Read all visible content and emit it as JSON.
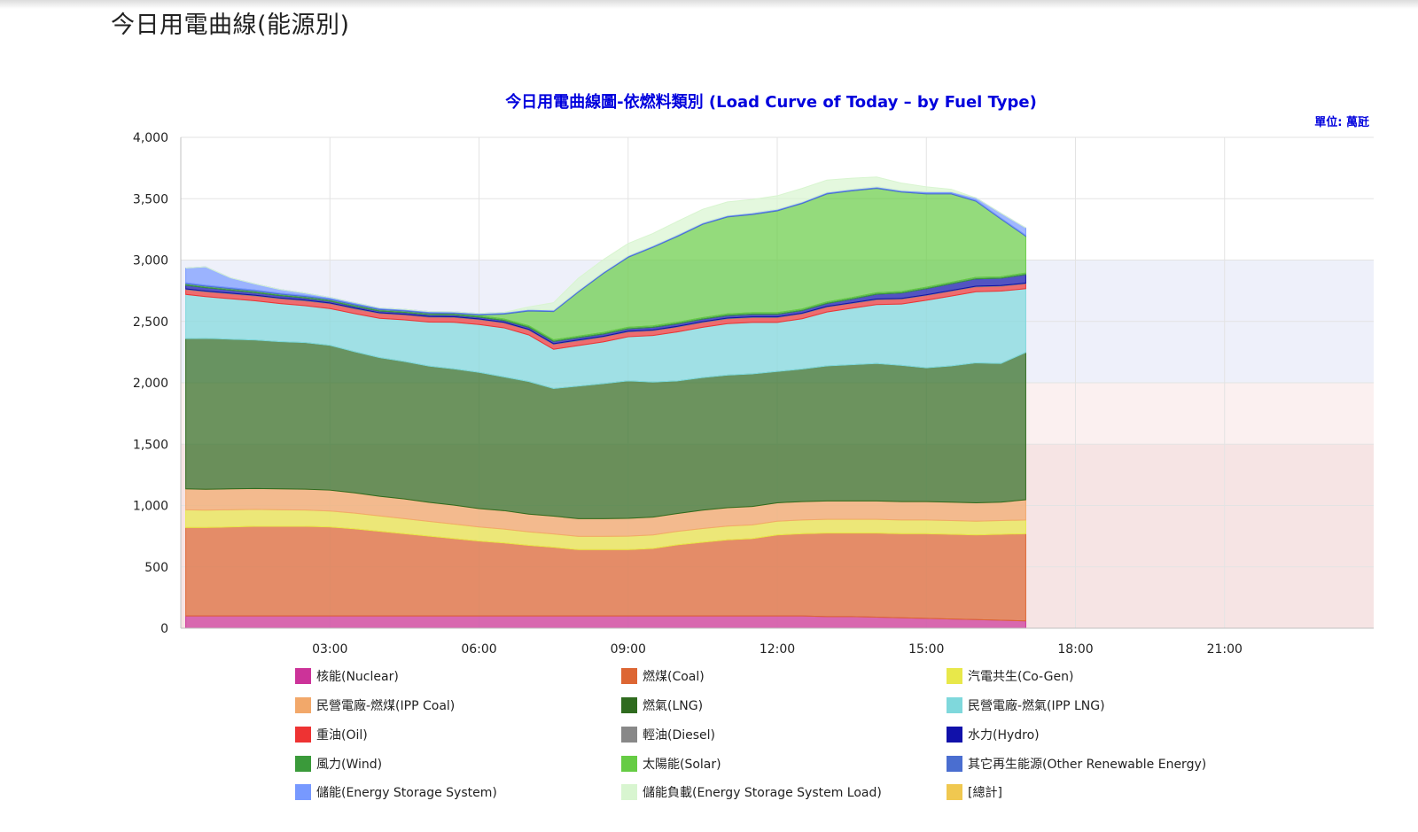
{
  "page": {
    "title": "今日用電曲線(能源別)"
  },
  "chart_data": {
    "type": "area",
    "stacked": true,
    "title": "今日用電曲線圖-依燃料類別 (Load Curve of Today – by Fuel Type)",
    "unit_label": "單位: 萬瓩",
    "xlim_hours": [
      0,
      24
    ],
    "ylim": [
      0,
      4000
    ],
    "y_ticks": [
      0,
      500,
      1000,
      1500,
      2000,
      2500,
      3000,
      3500,
      4000
    ],
    "y_tick_labels": [
      "0",
      "500",
      "1,000",
      "1,500",
      "2,000",
      "2,500",
      "3,000",
      "3,500",
      "4,000"
    ],
    "x_ticks_hours": [
      3,
      6,
      9,
      12,
      15,
      18,
      21
    ],
    "x_tick_labels": [
      "03:00",
      "06:00",
      "09:00",
      "12:00",
      "15:00",
      "18:00",
      "21:00"
    ],
    "grid": true,
    "background_bands": [
      {
        "from": 2000,
        "to": 3000,
        "color": "#eef0fa"
      },
      {
        "from": 1500,
        "to": 2000,
        "color": "#fbf0f0"
      },
      {
        "from": 0,
        "to": 1500,
        "color": "#f6e4e4"
      }
    ],
    "x_hours": [
      0.1,
      0.5,
      1,
      1.5,
      2,
      2.5,
      3,
      3.5,
      4,
      4.5,
      5,
      5.5,
      6,
      6.5,
      7,
      7.5,
      8,
      8.5,
      9,
      9.5,
      10,
      10.5,
      11,
      11.5,
      12,
      12.5,
      13,
      13.5,
      14,
      14.5,
      15,
      15.5,
      16,
      16.5,
      17
    ],
    "series": [
      {
        "name": "核能(Nuclear)",
        "color": "#cc3399",
        "values": [
          100,
          100,
          100,
          100,
          100,
          100,
          100,
          100,
          100,
          100,
          100,
          100,
          100,
          100,
          100,
          100,
          100,
          100,
          100,
          100,
          100,
          100,
          100,
          100,
          100,
          100,
          95,
          95,
          90,
          85,
          80,
          75,
          70,
          65,
          60
        ]
      },
      {
        "name": "燃煤(Coal)",
        "color": "#dd6633",
        "values": [
          720,
          720,
          725,
          730,
          730,
          730,
          725,
          710,
          690,
          670,
          650,
          630,
          610,
          595,
          575,
          560,
          540,
          540,
          540,
          550,
          580,
          600,
          620,
          630,
          660,
          670,
          680,
          680,
          685,
          685,
          690,
          690,
          690,
          700,
          710
        ]
      },
      {
        "name": "汽電共生(Co-Gen)",
        "color": "#e8e84a",
        "values": [
          145,
          142,
          140,
          138,
          135,
          133,
          130,
          128,
          125,
          123,
          120,
          118,
          115,
          113,
          110,
          108,
          108,
          108,
          110,
          110,
          110,
          112,
          112,
          112,
          112,
          112,
          112,
          112,
          112,
          112,
          112,
          112,
          112,
          112,
          112
        ]
      },
      {
        "name": "民營電廠-燃煤(IPP Coal)",
        "color": "#f2a86a",
        "values": [
          170,
          170,
          170,
          170,
          170,
          170,
          170,
          165,
          160,
          160,
          155,
          155,
          150,
          150,
          145,
          145,
          145,
          145,
          145,
          145,
          145,
          150,
          150,
          150,
          150,
          150,
          150,
          150,
          150,
          150,
          150,
          150,
          150,
          150,
          165
        ]
      },
      {
        "name": "燃氣(LNG)",
        "color": "#2f6b1f",
        "values": [
          1225,
          1230,
          1220,
          1210,
          1200,
          1195,
          1180,
          1150,
          1130,
          1120,
          1110,
          1110,
          1110,
          1090,
          1080,
          1040,
          1080,
          1100,
          1120,
          1100,
          1080,
          1080,
          1080,
          1080,
          1070,
          1080,
          1100,
          1110,
          1120,
          1110,
          1090,
          1110,
          1140,
          1130,
          1200
        ]
      },
      {
        "name": "民營電廠-燃氣(IPP LNG)",
        "color": "#7fd8dc",
        "values": [
          360,
          340,
          330,
          320,
          310,
          300,
          300,
          310,
          320,
          340,
          360,
          380,
          390,
          400,
          380,
          320,
          330,
          340,
          360,
          380,
          400,
          410,
          420,
          420,
          400,
          410,
          440,
          460,
          480,
          500,
          550,
          570,
          580,
          590,
          520
        ]
      },
      {
        "name": "重油(Oil)",
        "color": "#ee3333",
        "values": [
          40,
          40,
          40,
          40,
          40,
          40,
          40,
          40,
          40,
          40,
          40,
          40,
          40,
          40,
          40,
          40,
          40,
          40,
          40,
          40,
          40,
          40,
          40,
          40,
          40,
          40,
          40,
          40,
          40,
          40,
          40,
          40,
          40,
          40,
          40
        ]
      },
      {
        "name": "輕油(Diesel)",
        "color": "#888888",
        "values": [
          5,
          5,
          5,
          5,
          5,
          5,
          5,
          5,
          5,
          5,
          5,
          5,
          5,
          5,
          5,
          5,
          5,
          5,
          5,
          5,
          5,
          5,
          5,
          5,
          5,
          5,
          5,
          5,
          5,
          5,
          5,
          5,
          5,
          5,
          5
        ]
      },
      {
        "name": "水力(Hydro)",
        "color": "#1111aa",
        "values": [
          30,
          28,
          25,
          22,
          20,
          18,
          16,
          15,
          15,
          15,
          15,
          15,
          15,
          15,
          18,
          20,
          20,
          20,
          20,
          22,
          22,
          22,
          22,
          22,
          22,
          22,
          25,
          30,
          40,
          45,
          50,
          55,
          60,
          60,
          70
        ]
      },
      {
        "name": "風力(Wind)",
        "color": "#3a9a3a",
        "values": [
          12,
          12,
          12,
          12,
          12,
          12,
          12,
          12,
          12,
          12,
          12,
          12,
          12,
          12,
          12,
          12,
          12,
          12,
          12,
          12,
          12,
          12,
          12,
          12,
          12,
          12,
          12,
          12,
          12,
          12,
          12,
          12,
          12,
          12,
          12
        ]
      },
      {
        "name": "太陽能(Solar)",
        "color": "#66cc44",
        "values": [
          0,
          0,
          0,
          0,
          0,
          0,
          0,
          0,
          0,
          0,
          0,
          0,
          5,
          40,
          120,
          230,
          360,
          480,
          570,
          640,
          700,
          760,
          790,
          800,
          830,
          860,
          880,
          870,
          850,
          810,
          760,
          720,
          620,
          470,
          300
        ]
      },
      {
        "name": "其它再生能源(Other Renewable Energy)",
        "color": "#4a6ed0",
        "values": [
          8,
          8,
          8,
          8,
          8,
          8,
          8,
          8,
          8,
          8,
          8,
          8,
          8,
          8,
          8,
          8,
          8,
          8,
          8,
          8,
          8,
          8,
          8,
          8,
          8,
          8,
          8,
          8,
          8,
          8,
          8,
          8,
          8,
          8,
          8
        ]
      },
      {
        "name": "儲能(Energy Storage System)",
        "color": "#7799ff",
        "values": [
          120,
          150,
          80,
          50,
          30,
          20,
          10,
          10,
          5,
          5,
          5,
          5,
          5,
          5,
          5,
          5,
          5,
          5,
          5,
          5,
          5,
          5,
          5,
          5,
          5,
          5,
          5,
          5,
          5,
          5,
          10,
          10,
          20,
          40,
          60
        ]
      },
      {
        "name": "儲能負載(Energy Storage System Load)",
        "color": "#d8f5d0",
        "values": [
          0,
          0,
          0,
          0,
          0,
          0,
          0,
          0,
          0,
          0,
          0,
          0,
          0,
          0,
          20,
          60,
          100,
          100,
          100,
          100,
          110,
          110,
          110,
          110,
          110,
          110,
          100,
          90,
          80,
          60,
          40,
          20,
          0,
          0,
          0
        ]
      },
      {
        "name": "[總計]",
        "color": "#f0c850",
        "values": []
      }
    ]
  }
}
